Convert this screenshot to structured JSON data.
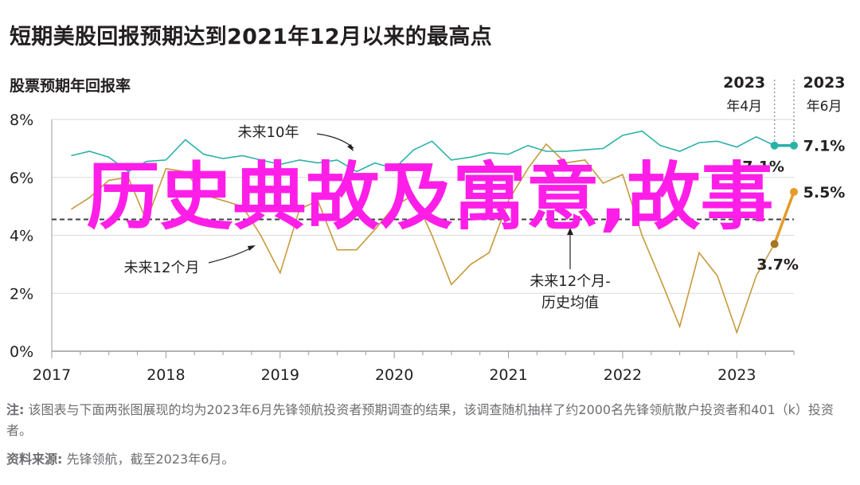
{
  "page": {
    "title": "短期美股回报预期达到2021年12月以来的最高点",
    "subtitle": "股票预期年回报率"
  },
  "chart_data": {
    "type": "line",
    "title": "短期美股回报预期达到2021年12月以来的最高点",
    "ylabel": "股票预期年回报率",
    "xlabel": "",
    "ylim": [
      0,
      8
    ],
    "y_ticks": [
      "0%",
      "2%",
      "4%",
      "6%",
      "8%"
    ],
    "x_range": [
      2017,
      2023.5
    ],
    "x_ticks": [
      "2017",
      "2018",
      "2019",
      "2020",
      "2021",
      "2022",
      "2023"
    ],
    "grid": "horizontal",
    "colors": {
      "ten_year": "#2bb2a6",
      "twelve_month": "#c79a3c",
      "average": "#404040",
      "end_orange": "#e59b2b",
      "end_brown": "#a67522"
    },
    "series": [
      {
        "name": "未来10年",
        "x": [
          2017.17,
          2017.33,
          2017.5,
          2017.67,
          2017.83,
          2018.0,
          2018.17,
          2018.33,
          2018.5,
          2018.67,
          2018.83,
          2019.0,
          2019.17,
          2019.33,
          2019.5,
          2019.67,
          2019.83,
          2020.0,
          2020.17,
          2020.33,
          2020.5,
          2020.67,
          2020.83,
          2021.0,
          2021.17,
          2021.33,
          2021.5,
          2021.67,
          2021.83,
          2022.0,
          2022.17,
          2022.33,
          2022.5,
          2022.67,
          2022.83,
          2023.0,
          2023.17,
          2023.33,
          2023.5
        ],
        "y": [
          6.75,
          6.9,
          6.7,
          6.2,
          6.55,
          6.6,
          7.3,
          6.8,
          6.65,
          6.75,
          6.6,
          6.45,
          6.6,
          6.5,
          6.6,
          6.2,
          6.5,
          6.3,
          6.95,
          7.25,
          6.6,
          6.7,
          6.85,
          6.8,
          7.1,
          6.9,
          6.9,
          6.95,
          7.0,
          7.45,
          7.6,
          7.1,
          6.9,
          7.2,
          7.25,
          7.05,
          7.4,
          7.1,
          7.1
        ]
      },
      {
        "name": "未来12个月",
        "x": [
          2017.17,
          2017.33,
          2017.5,
          2017.67,
          2017.83,
          2018.0,
          2018.17,
          2018.33,
          2018.5,
          2018.67,
          2018.83,
          2019.0,
          2019.17,
          2019.33,
          2019.5,
          2019.67,
          2019.83,
          2020.0,
          2020.17,
          2020.33,
          2020.5,
          2020.67,
          2020.83,
          2021.0,
          2021.17,
          2021.33,
          2021.5,
          2021.67,
          2021.83,
          2022.0,
          2022.17,
          2022.33,
          2022.5,
          2022.67,
          2022.83,
          2023.0,
          2023.17,
          2023.33
        ],
        "y": [
          4.9,
          5.3,
          5.9,
          6.0,
          4.5,
          6.3,
          6.2,
          5.4,
          5.2,
          5.0,
          4.0,
          2.7,
          4.9,
          5.2,
          3.5,
          3.5,
          4.2,
          5.0,
          5.4,
          4.0,
          2.3,
          3.0,
          3.4,
          5.2,
          6.3,
          7.15,
          6.5,
          6.6,
          5.8,
          6.1,
          4.0,
          2.5,
          0.85,
          3.4,
          2.6,
          0.65,
          2.6,
          3.7
        ]
      },
      {
        "name": "未来12个月-历史均值",
        "x": [
          2017.0,
          2023.5
        ],
        "y": [
          4.55,
          4.55
        ]
      }
    ],
    "end_points": [
      {
        "series": "未来10年",
        "x": 2023.33,
        "y": 7.1,
        "label": "7.1%"
      },
      {
        "series": "未来10年",
        "x": 2023.5,
        "y": 7.1,
        "label": "7.1%"
      },
      {
        "series": "未来12个月",
        "x": 2023.33,
        "y": 3.7,
        "label": "3.7%"
      },
      {
        "series": "未来12个月",
        "x": 2023.5,
        "y": 5.5,
        "label": "5.5%"
      }
    ],
    "markers": [
      {
        "x": 2023.33,
        "label_year": "2023",
        "label_month": "年4月"
      },
      {
        "x": 2023.5,
        "label_year": "2023",
        "label_month": "年6月"
      }
    ],
    "annotations": {
      "ten_year": "未来10年",
      "twelve_month": "未来12个月",
      "average_line1": "未来12个月-",
      "average_line2": "历史均值"
    }
  },
  "notes": {
    "note_label": "注:",
    "note_text": " 该图表与下面两张图展现的均为2023年6月先锋领航投资者预期调查的结果，该调查随机抽样了约2000名先锋领航散户投资者和401（k）投资者。",
    "source_label": "资料来源:",
    "source_text": " 先锋领航，截至2023年6月。"
  },
  "overlay": {
    "watermark_text": "历史典故及寓意,故事"
  }
}
